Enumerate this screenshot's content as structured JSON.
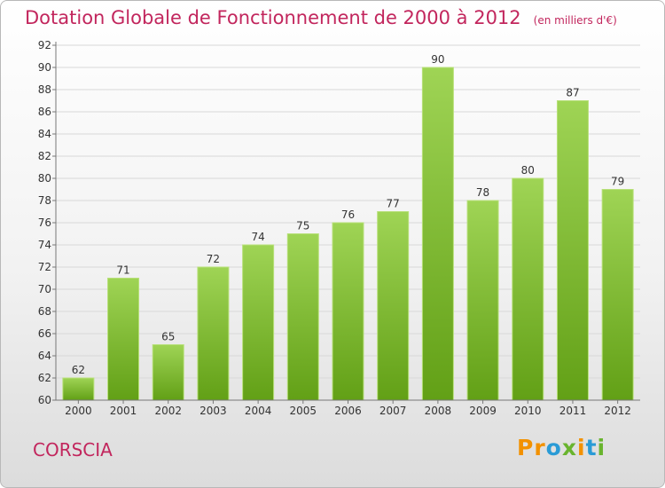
{
  "header": {
    "title": "Dotation Globale de Fonctionnement de 2000 à 2012",
    "unit": "(en milliers d'€)"
  },
  "footer": {
    "commune": "CORSCIA",
    "logo_text": "Proxiti",
    "logo_colors": [
      "#f29100",
      "#f29100",
      "#2a9bd6",
      "#69b42e",
      "#f29100",
      "#2a9bd6",
      "#69b42e"
    ]
  },
  "colors": {
    "title": "#c2265d",
    "bar_fill_light": "#9fd455",
    "bar_fill_dark": "#62a016",
    "grid": "#d8d8d8"
  },
  "chart_data": {
    "type": "bar",
    "title": "Dotation Globale de Fonctionnement de 2000 à 2012",
    "subtitle": "(en milliers d'€)",
    "categories": [
      "2000",
      "2001",
      "2002",
      "2003",
      "2004",
      "2005",
      "2006",
      "2007",
      "2008",
      "2009",
      "2010",
      "2011",
      "2012"
    ],
    "values": [
      62,
      71,
      65,
      72,
      74,
      75,
      76,
      77,
      90,
      78,
      80,
      87,
      79
    ],
    "ylim": [
      60,
      92
    ],
    "yticks": [
      60,
      62,
      64,
      66,
      68,
      70,
      72,
      74,
      76,
      78,
      80,
      82,
      84,
      86,
      88,
      90,
      92
    ],
    "xlabel": "",
    "ylabel": "",
    "grid": true,
    "data_labels": true
  }
}
